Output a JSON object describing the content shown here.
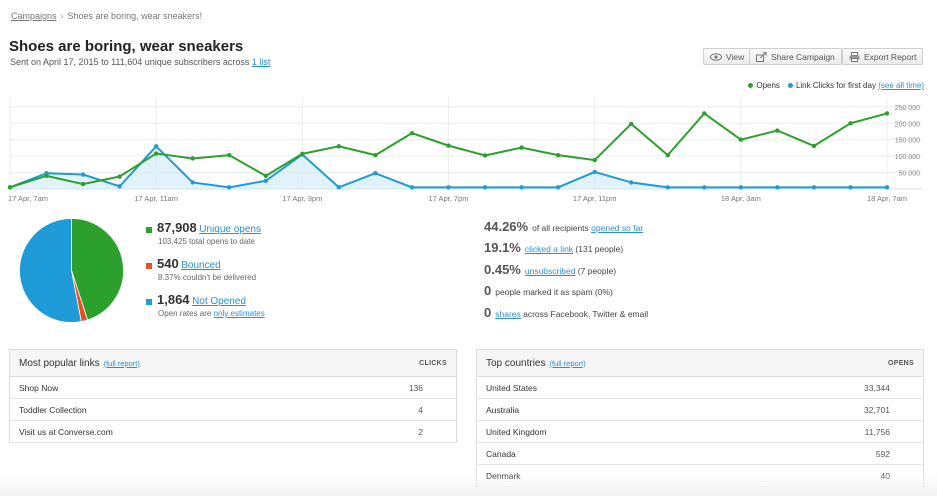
{
  "breadcrumb": {
    "root": "Campaigns",
    "sep": "›",
    "current": "Shoes are boring, wear sneakers!"
  },
  "header": {
    "title": "Shoes are boring, wear sneakers",
    "subtitle_prefix": "Sent on April 17, 2015 to 111,604 unique subscribers across",
    "subtitle_link": "1 list"
  },
  "toolbar": {
    "view": "View",
    "share": "Share Campaign",
    "export": "Export Report"
  },
  "legend": {
    "opens": "Opens",
    "clicks": "Link Clicks for first day",
    "see_all": "(see all time)"
  },
  "colors": {
    "opens": "#2ca02c",
    "clicks": "#1f9bd8",
    "bounced": "#e8501e",
    "link": "#2a8fd6"
  },
  "chart_data": {
    "type": "line",
    "x": [
      "17 Apr, 7am",
      "17 Apr, 8am",
      "17 Apr, 9am",
      "17 Apr, 10am",
      "17 Apr, 11am",
      "17 Apr, 12pm",
      "17 Apr, 1pm",
      "17 Apr, 2pm",
      "17 Apr, 3pm",
      "17 Apr, 4pm",
      "17 Apr, 5pm",
      "17 Apr, 6pm",
      "17 Apr, 7pm",
      "17 Apr, 8pm",
      "17 Apr, 9pm",
      "17 Apr, 10pm",
      "17 Apr, 11pm",
      "18 Apr, 12am",
      "18 Apr, 1am",
      "18 Apr, 2am",
      "18 Apr, 3am",
      "18 Apr, 4am",
      "18 Apr, 5am",
      "18 Apr, 6am",
      "18 Apr, 7am"
    ],
    "x_tick_labels": [
      "17 Apr, 7am",
      "17 Apr, 11am",
      "17 Apr, 3pm",
      "17 Apr, 7pm",
      "17 Apr, 11pm",
      "18 Apr, 3am",
      "18 Apr, 7am"
    ],
    "series": [
      {
        "name": "Opens",
        "values": [
          5000,
          40000,
          15000,
          38000,
          108000,
          93000,
          103000,
          40000,
          107000,
          130000,
          103000,
          170000,
          132000,
          102000,
          126000,
          103000,
          88000,
          198000,
          103000,
          230000,
          150000,
          178000,
          131000,
          200000,
          230000
        ]
      },
      {
        "name": "Link Clicks for first day",
        "values": [
          5000,
          48000,
          44000,
          8000,
          130000,
          20000,
          5000,
          25000,
          105000,
          5000,
          48000,
          5000,
          5000,
          5000,
          5000,
          5000,
          52000,
          20000,
          5000,
          5000,
          5000,
          5000,
          5000,
          5000,
          5000
        ]
      }
    ],
    "y_ticks": [
      "250 000",
      "200 000",
      "150 000",
      "100 000",
      "50 000"
    ],
    "ylim": [
      0,
      280000
    ],
    "grid": true,
    "legend_position": "top-right"
  },
  "pie_data": {
    "type": "pie",
    "values": [
      87908,
      540,
      1864
    ],
    "note": "slices: Unique opens, Bounced, Not Opened"
  },
  "stats": {
    "opens": {
      "value": "87,908",
      "label": "Unique opens",
      "sub": "103,425 total opens to date"
    },
    "bounced": {
      "value": "540",
      "label": "Bounced",
      "sub": "8.37% couldn't be delivered"
    },
    "not_opened": {
      "value": "1,864",
      "label": "Not Opened",
      "sub_prefix": "Open rates are",
      "sub_link": "only estimates"
    }
  },
  "rates": [
    {
      "value": "44.26%",
      "text": "of all recipients",
      "link": "opened so far",
      "suffix": ""
    },
    {
      "value": "19.1%",
      "text": "",
      "link": "clicked a link",
      "suffix": "(131 people)"
    },
    {
      "value": "0.45%",
      "text": "",
      "link": "unsubscribed",
      "suffix": "(7 people)"
    },
    {
      "value": "0",
      "text": "people marked it as spam (0%)",
      "link": "",
      "suffix": ""
    },
    {
      "value": "0",
      "text": "",
      "link": "shares",
      "suffix": "across Facebook, Twitter & email"
    }
  ],
  "links_panel": {
    "title": "Most popular links",
    "full": "(full report)",
    "col": "CLICKS",
    "rows": [
      {
        "name": "Shop Now",
        "v": "136"
      },
      {
        "name": "Toddler Collection",
        "v": "4"
      },
      {
        "name": "Visit us at Converse.com",
        "v": "2"
      }
    ]
  },
  "countries_panel": {
    "title": "Top countries",
    "full": "(full report)",
    "col": "OPENS",
    "rows": [
      {
        "name": "United States",
        "v": "33,344"
      },
      {
        "name": "Australia",
        "v": "32,701"
      },
      {
        "name": "United Kingdom",
        "v": "11,756"
      },
      {
        "name": "Canada",
        "v": "592"
      },
      {
        "name": "Denmark",
        "v": "40"
      }
    ]
  }
}
